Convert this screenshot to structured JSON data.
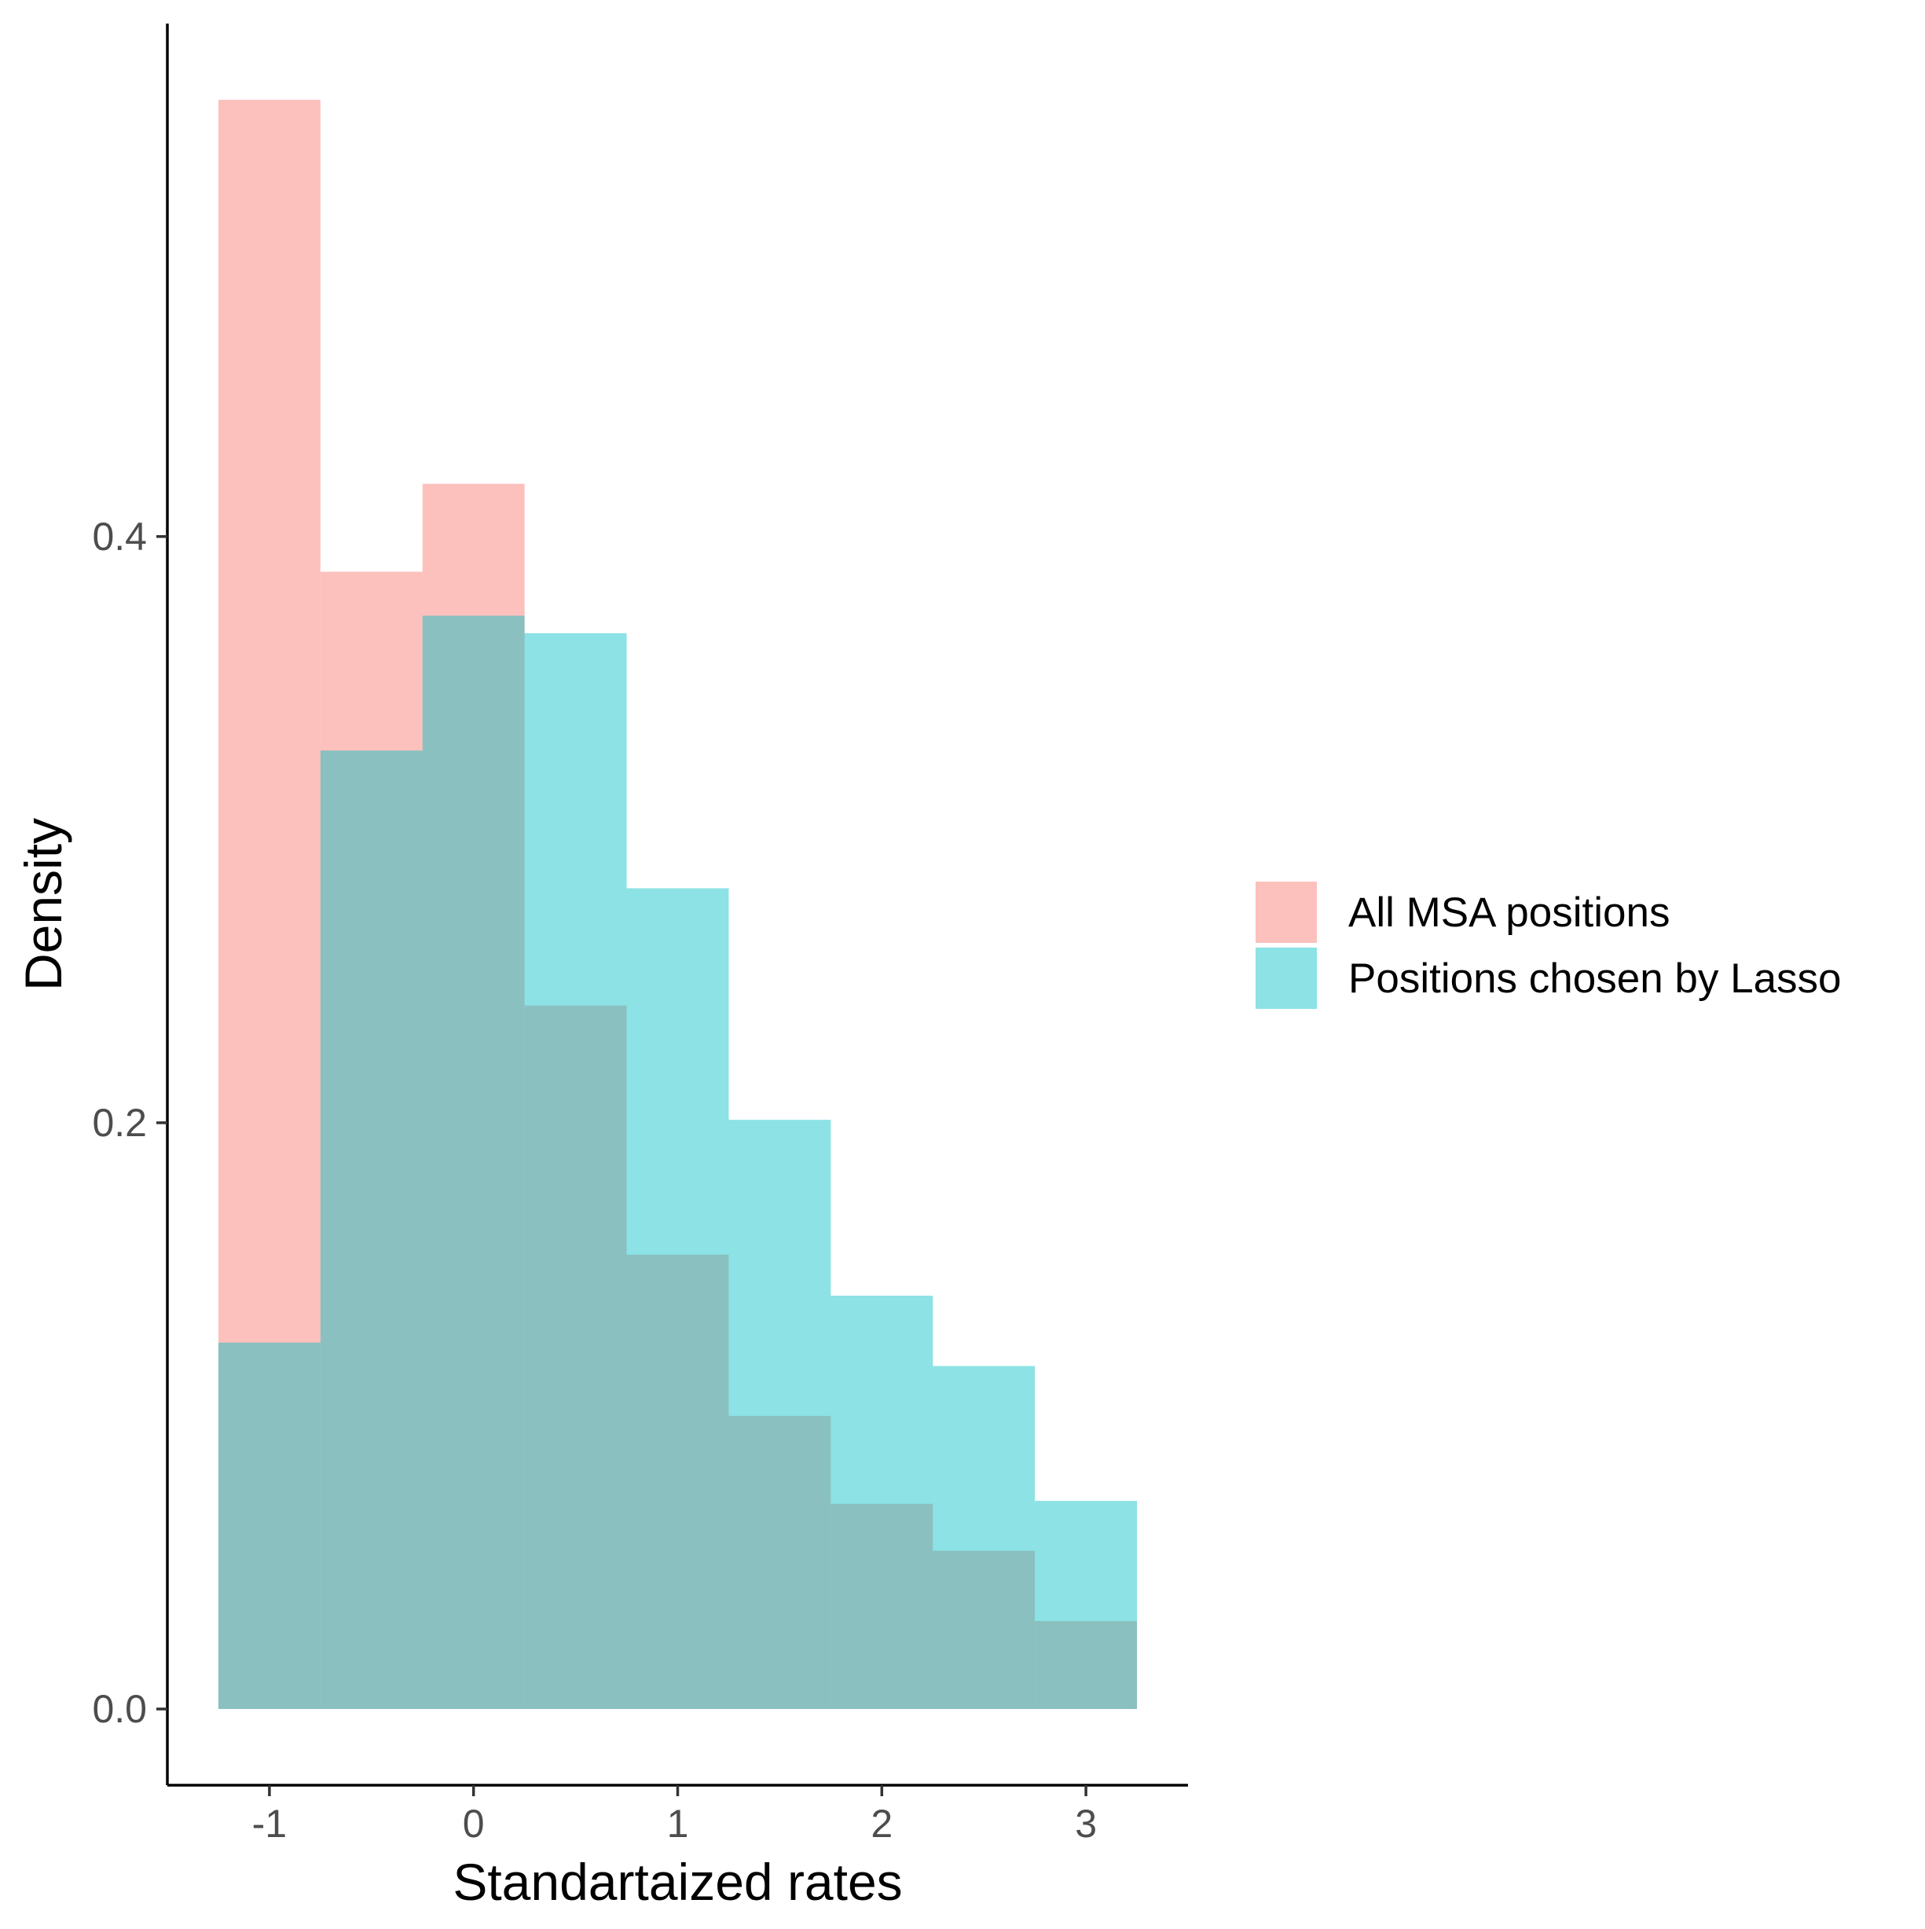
{
  "chart_data": {
    "type": "bar",
    "subtype": "overlapping-histogram",
    "xlabel": "Standartaized rates",
    "ylabel": "Density",
    "x_ticks": [
      -1,
      0,
      1,
      2,
      3
    ],
    "x_tick_labels": [
      "-1",
      "0",
      "1",
      "2",
      "3"
    ],
    "y_ticks": [
      0.0,
      0.2,
      0.4
    ],
    "y_tick_labels": [
      "0.0",
      "0.2",
      "0.4"
    ],
    "xlim": [
      -1.5,
      3.5
    ],
    "ylim": [
      -0.026,
      0.575
    ],
    "bins": [
      [
        -1.25,
        -0.75
      ],
      [
        -0.75,
        -0.25
      ],
      [
        -0.25,
        0.25
      ],
      [
        0.25,
        0.75
      ],
      [
        0.75,
        1.25
      ],
      [
        1.25,
        1.75
      ],
      [
        1.75,
        2.25
      ],
      [
        2.25,
        2.75
      ],
      [
        2.75,
        3.25
      ]
    ],
    "series": [
      {
        "name": "All MSA positions",
        "color": "#F8766D",
        "values": [
          0.549,
          0.388,
          0.418,
          0.24,
          0.155,
          0.1,
          0.07,
          0.054,
          0.03
        ]
      },
      {
        "name": "Positions chosen by Lasso",
        "color": "#00BFC4",
        "values": [
          0.125,
          0.327,
          0.373,
          0.367,
          0.28,
          0.201,
          0.141,
          0.117,
          0.071
        ]
      }
    ],
    "fill_alpha": 0.45,
    "grid": false,
    "legend_position": "right"
  }
}
